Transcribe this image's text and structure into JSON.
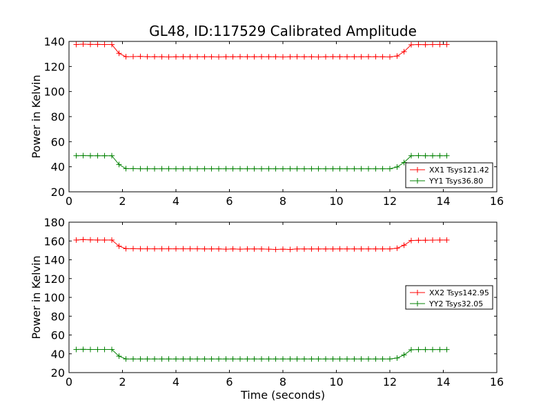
{
  "chart_data": [
    {
      "type": "line",
      "title": "GL48, ID:117529 Calibrated Amplitude",
      "xlabel": "",
      "ylabel": "Power in Kelvin",
      "xlim": [
        0,
        16
      ],
      "ylim": [
        20,
        140
      ],
      "xticks": [
        "0",
        "2",
        "4",
        "6",
        "8",
        "10",
        "12",
        "14",
        "16"
      ],
      "yticks": [
        "20",
        "40",
        "60",
        "80",
        "100",
        "120",
        "140"
      ],
      "grid": false,
      "legend_position": "lower-right",
      "series": [
        {
          "name": "XX1 Tsys121.42",
          "color": "#ff0000",
          "marker": "+",
          "x": [
            0.27,
            0.53,
            0.8,
            1.07,
            1.33,
            1.6,
            1.87,
            2.13,
            2.4,
            2.67,
            2.93,
            3.2,
            3.47,
            3.73,
            4.0,
            4.27,
            4.53,
            4.8,
            5.07,
            5.33,
            5.6,
            5.87,
            6.13,
            6.4,
            6.67,
            6.93,
            7.2,
            7.47,
            7.73,
            8.0,
            8.27,
            8.53,
            8.8,
            9.07,
            9.33,
            9.6,
            9.87,
            10.13,
            10.4,
            10.67,
            10.93,
            11.2,
            11.47,
            11.73,
            12.0,
            12.27,
            12.53,
            12.8,
            13.07,
            13.33,
            13.6,
            13.87,
            14.13
          ],
          "y": [
            137.5,
            137.8,
            137.6,
            137.6,
            137.5,
            137.5,
            130.5,
            127.8,
            127.9,
            128.0,
            127.8,
            127.8,
            127.7,
            127.6,
            127.7,
            127.8,
            127.7,
            127.8,
            127.7,
            127.7,
            127.6,
            127.7,
            127.7,
            127.8,
            127.7,
            127.7,
            127.8,
            127.7,
            127.7,
            127.6,
            127.7,
            127.8,
            127.7,
            127.7,
            127.6,
            127.7,
            127.8,
            127.7,
            127.7,
            127.7,
            127.7,
            127.8,
            127.8,
            127.7,
            127.6,
            128.3,
            131.8,
            137.3,
            137.5,
            137.4,
            137.5,
            137.5,
            137.5
          ]
        },
        {
          "name": "YY1 Tsys36.80",
          "color": "#008000",
          "marker": "+",
          "x": [
            0.27,
            0.53,
            0.8,
            1.07,
            1.33,
            1.6,
            1.87,
            2.13,
            2.4,
            2.67,
            2.93,
            3.2,
            3.47,
            3.73,
            4.0,
            4.27,
            4.53,
            4.8,
            5.07,
            5.33,
            5.6,
            5.87,
            6.13,
            6.4,
            6.67,
            6.93,
            7.2,
            7.47,
            7.73,
            8.0,
            8.27,
            8.53,
            8.8,
            9.07,
            9.33,
            9.6,
            9.87,
            10.13,
            10.4,
            10.67,
            10.93,
            11.2,
            11.47,
            11.73,
            12.0,
            12.27,
            12.53,
            12.8,
            13.07,
            13.33,
            13.6,
            13.87,
            14.13
          ],
          "y": [
            48.8,
            48.9,
            48.8,
            48.8,
            48.8,
            48.8,
            41.8,
            38.5,
            38.5,
            38.4,
            38.4,
            38.4,
            38.4,
            38.4,
            38.4,
            38.4,
            38.4,
            38.4,
            38.4,
            38.4,
            38.4,
            38.4,
            38.4,
            38.4,
            38.4,
            38.4,
            38.4,
            38.4,
            38.4,
            38.4,
            38.4,
            38.4,
            38.4,
            38.4,
            38.4,
            38.4,
            38.4,
            38.4,
            38.4,
            38.4,
            38.4,
            38.4,
            38.4,
            38.4,
            38.4,
            39.8,
            43.4,
            48.8,
            48.9,
            48.8,
            48.8,
            48.8,
            48.8
          ]
        }
      ]
    },
    {
      "type": "line",
      "title": "",
      "xlabel": "Time (seconds)",
      "ylabel": "Power in Kelvin",
      "xlim": [
        0,
        16
      ],
      "ylim": [
        20,
        180
      ],
      "xticks": [
        "0",
        "2",
        "4",
        "6",
        "8",
        "10",
        "12",
        "14",
        "16"
      ],
      "yticks": [
        "20",
        "40",
        "60",
        "80",
        "100",
        "120",
        "140",
        "160",
        "180"
      ],
      "grid": false,
      "legend_position": "center-right",
      "series": [
        {
          "name": "XX2 Tsys142.95",
          "color": "#ff0000",
          "marker": "+",
          "x": [
            0.27,
            0.53,
            0.8,
            1.07,
            1.33,
            1.6,
            1.87,
            2.13,
            2.4,
            2.67,
            2.93,
            3.2,
            3.47,
            3.73,
            4.0,
            4.27,
            4.53,
            4.8,
            5.07,
            5.33,
            5.6,
            5.87,
            6.13,
            6.4,
            6.67,
            6.93,
            7.2,
            7.47,
            7.73,
            8.0,
            8.27,
            8.53,
            8.8,
            9.07,
            9.33,
            9.6,
            9.87,
            10.13,
            10.4,
            10.67,
            10.93,
            11.2,
            11.47,
            11.73,
            12.0,
            12.27,
            12.53,
            12.8,
            13.07,
            13.33,
            13.6,
            13.87,
            14.13
          ],
          "y": [
            161.0,
            161.5,
            161.2,
            161.0,
            161.0,
            161.0,
            154.5,
            151.8,
            151.8,
            151.7,
            151.7,
            151.7,
            151.7,
            151.7,
            151.7,
            151.7,
            151.7,
            151.7,
            151.6,
            151.6,
            151.6,
            151.3,
            151.6,
            151.3,
            151.5,
            151.5,
            151.5,
            151.3,
            151.0,
            151.3,
            151.0,
            151.5,
            151.5,
            151.5,
            151.5,
            151.5,
            151.5,
            151.6,
            151.6,
            151.6,
            151.6,
            151.6,
            151.6,
            151.6,
            151.6,
            152.3,
            155.5,
            160.5,
            160.7,
            160.8,
            160.9,
            161.0,
            161.0
          ]
        },
        {
          "name": "YY2 Tsys32.05",
          "color": "#008000",
          "marker": "+",
          "x": [
            0.27,
            0.53,
            0.8,
            1.07,
            1.33,
            1.6,
            1.87,
            2.13,
            2.4,
            2.67,
            2.93,
            3.2,
            3.47,
            3.73,
            4.0,
            4.27,
            4.53,
            4.8,
            5.07,
            5.33,
            5.6,
            5.87,
            6.13,
            6.4,
            6.67,
            6.93,
            7.2,
            7.47,
            7.73,
            8.0,
            8.27,
            8.53,
            8.8,
            9.07,
            9.33,
            9.6,
            9.87,
            10.13,
            10.4,
            10.67,
            10.93,
            11.2,
            11.47,
            11.73,
            12.0,
            12.27,
            12.53,
            12.8,
            13.07,
            13.33,
            13.6,
            13.87,
            14.13
          ],
          "y": [
            44.6,
            44.7,
            44.6,
            44.6,
            44.6,
            44.6,
            37.5,
            34.5,
            34.5,
            34.5,
            34.5,
            34.5,
            34.5,
            34.5,
            34.5,
            34.5,
            34.5,
            34.5,
            34.5,
            34.5,
            34.5,
            34.5,
            34.5,
            34.5,
            34.5,
            34.5,
            34.5,
            34.5,
            34.5,
            34.5,
            34.5,
            34.5,
            34.5,
            34.5,
            34.5,
            34.5,
            34.5,
            34.5,
            34.5,
            34.5,
            34.5,
            34.5,
            34.5,
            34.5,
            34.5,
            35.5,
            38.8,
            44.3,
            44.5,
            44.5,
            44.5,
            44.5,
            44.5
          ]
        }
      ]
    }
  ]
}
